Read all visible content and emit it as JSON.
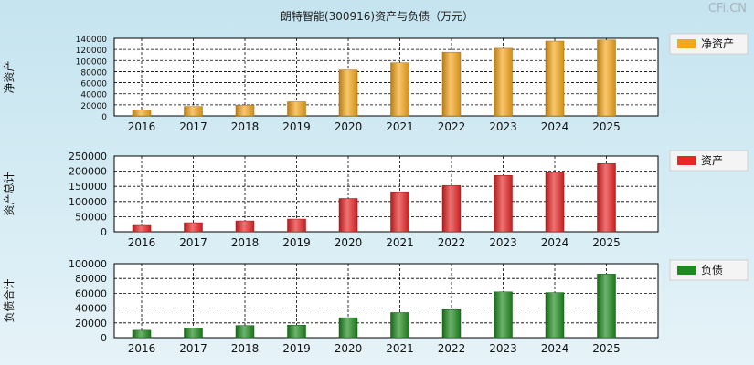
{
  "title": "朗特智能(300916)资产与负债（万元）",
  "watermark": "CFi.CN",
  "chart_data": [
    {
      "type": "bar",
      "ylabel": "净资产",
      "legend": "净资产",
      "legend_position": "right",
      "color": "#f5a81b",
      "ylim": [
        0,
        140000
      ],
      "yticks": [
        0,
        20000,
        40000,
        60000,
        80000,
        100000,
        120000,
        140000
      ],
      "categories": [
        "2016",
        "2017",
        "2018",
        "2019",
        "2020",
        "2021",
        "2022",
        "2023",
        "2024",
        "2025"
      ],
      "values": [
        11000,
        17000,
        19500,
        25500,
        83000,
        96000,
        115000,
        122000,
        135000,
        137000
      ],
      "grid": true
    },
    {
      "type": "bar",
      "ylabel": "资产总计",
      "legend": "资产",
      "legend_position": "right",
      "color": "#e82626",
      "ylim": [
        0,
        250000
      ],
      "yticks": [
        0,
        50000,
        100000,
        150000,
        200000,
        250000
      ],
      "categories": [
        "2016",
        "2017",
        "2018",
        "2019",
        "2020",
        "2021",
        "2022",
        "2023",
        "2024",
        "2025"
      ],
      "values": [
        21000,
        30000,
        36000,
        42000,
        110000,
        132000,
        153000,
        186000,
        196000,
        225000
      ],
      "grid": true
    },
    {
      "type": "bar",
      "ylabel": "负债合计",
      "legend": "负债",
      "legend_position": "right",
      "color": "#1f8a1f",
      "ylim": [
        0,
        100000
      ],
      "yticks": [
        0,
        20000,
        40000,
        60000,
        80000,
        100000
      ],
      "categories": [
        "2016",
        "2017",
        "2018",
        "2019",
        "2020",
        "2021",
        "2022",
        "2023",
        "2024",
        "2025"
      ],
      "values": [
        10000,
        13000,
        16500,
        17000,
        27000,
        34000,
        38000,
        62000,
        61000,
        86000
      ],
      "grid": true
    }
  ]
}
